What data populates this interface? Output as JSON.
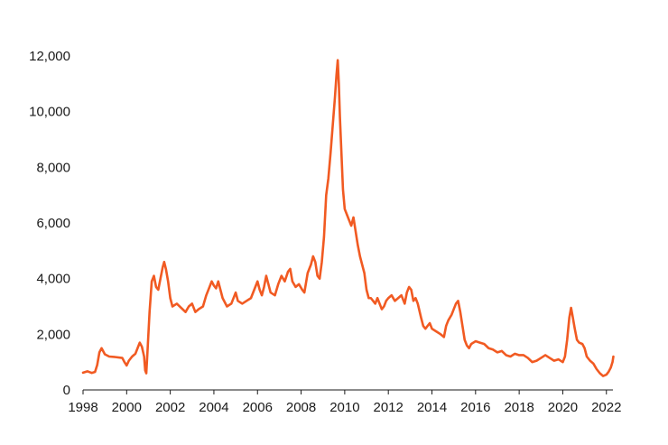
{
  "chart_data": {
    "type": "line",
    "title": "",
    "xlabel": "",
    "ylabel": "",
    "xlim": [
      1998.0,
      2022.3
    ],
    "ylim": [
      0,
      12000
    ],
    "x_ticks": [
      1998,
      2000,
      2002,
      2004,
      2006,
      2008,
      2010,
      2012,
      2014,
      2016,
      2018,
      2020,
      2022
    ],
    "x_tick_labels": [
      "1998",
      "2000",
      "2002",
      "2004",
      "2006",
      "2008",
      "2010",
      "2012",
      "2014",
      "2016",
      "2018",
      "2020",
      "2022"
    ],
    "y_ticks": [
      0,
      2000,
      4000,
      6000,
      8000,
      10000,
      12000
    ],
    "y_tick_labels": [
      "0",
      "2,000",
      "4,000",
      "6,000",
      "8,000",
      "10,000",
      "12,000"
    ],
    "grid": false,
    "legend": "none",
    "series": [
      {
        "color": "#f15a22",
        "points": [
          [
            1998.0,
            620
          ],
          [
            1998.2,
            670
          ],
          [
            1998.4,
            610
          ],
          [
            1998.55,
            650
          ],
          [
            1998.65,
            900
          ],
          [
            1998.75,
            1350
          ],
          [
            1998.85,
            1500
          ],
          [
            1999.0,
            1280
          ],
          [
            1999.2,
            1200
          ],
          [
            1999.5,
            1180
          ],
          [
            1999.8,
            1150
          ],
          [
            1999.9,
            1000
          ],
          [
            2000.0,
            880
          ],
          [
            2000.1,
            1050
          ],
          [
            2000.25,
            1200
          ],
          [
            2000.4,
            1300
          ],
          [
            2000.5,
            1500
          ],
          [
            2000.6,
            1700
          ],
          [
            2000.7,
            1550
          ],
          [
            2000.8,
            1200
          ],
          [
            2000.85,
            700
          ],
          [
            2000.9,
            600
          ],
          [
            2000.95,
            1300
          ],
          [
            2001.05,
            2800
          ],
          [
            2001.15,
            3900
          ],
          [
            2001.25,
            4100
          ],
          [
            2001.35,
            3700
          ],
          [
            2001.45,
            3600
          ],
          [
            2001.55,
            4000
          ],
          [
            2001.65,
            4400
          ],
          [
            2001.72,
            4600
          ],
          [
            2001.8,
            4350
          ],
          [
            2001.9,
            3900
          ],
          [
            2002.0,
            3300
          ],
          [
            2002.1,
            3000
          ],
          [
            2002.3,
            3100
          ],
          [
            2002.5,
            2950
          ],
          [
            2002.7,
            2800
          ],
          [
            2002.85,
            3000
          ],
          [
            2003.0,
            3100
          ],
          [
            2003.15,
            2800
          ],
          [
            2003.3,
            2900
          ],
          [
            2003.5,
            3000
          ],
          [
            2003.65,
            3400
          ],
          [
            2003.8,
            3700
          ],
          [
            2003.9,
            3900
          ],
          [
            2004.0,
            3750
          ],
          [
            2004.1,
            3650
          ],
          [
            2004.2,
            3900
          ],
          [
            2004.3,
            3600
          ],
          [
            2004.4,
            3300
          ],
          [
            2004.6,
            3000
          ],
          [
            2004.8,
            3100
          ],
          [
            2004.95,
            3400
          ],
          [
            2005.0,
            3500
          ],
          [
            2005.1,
            3200
          ],
          [
            2005.3,
            3100
          ],
          [
            2005.5,
            3200
          ],
          [
            2005.7,
            3300
          ],
          [
            2005.85,
            3600
          ],
          [
            2006.0,
            3900
          ],
          [
            2006.1,
            3600
          ],
          [
            2006.2,
            3400
          ],
          [
            2006.3,
            3700
          ],
          [
            2006.4,
            4100
          ],
          [
            2006.5,
            3800
          ],
          [
            2006.6,
            3500
          ],
          [
            2006.8,
            3400
          ],
          [
            2006.95,
            3800
          ],
          [
            2007.1,
            4100
          ],
          [
            2007.25,
            3900
          ],
          [
            2007.4,
            4250
          ],
          [
            2007.5,
            4350
          ],
          [
            2007.6,
            3900
          ],
          [
            2007.75,
            3700
          ],
          [
            2007.9,
            3800
          ],
          [
            2008.05,
            3600
          ],
          [
            2008.15,
            3500
          ],
          [
            2008.3,
            4200
          ],
          [
            2008.45,
            4500
          ],
          [
            2008.55,
            4800
          ],
          [
            2008.65,
            4600
          ],
          [
            2008.75,
            4100
          ],
          [
            2008.85,
            4000
          ],
          [
            2008.95,
            4600
          ],
          [
            2009.05,
            5500
          ],
          [
            2009.15,
            7000
          ],
          [
            2009.25,
            7600
          ],
          [
            2009.35,
            8500
          ],
          [
            2009.45,
            9500
          ],
          [
            2009.55,
            10500
          ],
          [
            2009.62,
            11300
          ],
          [
            2009.68,
            11850
          ],
          [
            2009.73,
            11000
          ],
          [
            2009.78,
            9800
          ],
          [
            2009.85,
            8500
          ],
          [
            2009.92,
            7200
          ],
          [
            2010.0,
            6500
          ],
          [
            2010.1,
            6300
          ],
          [
            2010.2,
            6100
          ],
          [
            2010.3,
            5900
          ],
          [
            2010.4,
            6200
          ],
          [
            2010.5,
            5700
          ],
          [
            2010.6,
            5200
          ],
          [
            2010.7,
            4800
          ],
          [
            2010.8,
            4500
          ],
          [
            2010.9,
            4200
          ],
          [
            2011.0,
            3600
          ],
          [
            2011.1,
            3300
          ],
          [
            2011.2,
            3300
          ],
          [
            2011.3,
            3200
          ],
          [
            2011.4,
            3100
          ],
          [
            2011.5,
            3300
          ],
          [
            2011.6,
            3100
          ],
          [
            2011.7,
            2900
          ],
          [
            2011.8,
            3000
          ],
          [
            2011.9,
            3200
          ],
          [
            2012.0,
            3300
          ],
          [
            2012.15,
            3400
          ],
          [
            2012.3,
            3200
          ],
          [
            2012.45,
            3300
          ],
          [
            2012.6,
            3400
          ],
          [
            2012.75,
            3100
          ],
          [
            2012.85,
            3500
          ],
          [
            2012.95,
            3700
          ],
          [
            2013.05,
            3600
          ],
          [
            2013.15,
            3200
          ],
          [
            2013.25,
            3300
          ],
          [
            2013.35,
            3100
          ],
          [
            2013.5,
            2600
          ],
          [
            2013.6,
            2300
          ],
          [
            2013.7,
            2200
          ],
          [
            2013.8,
            2300
          ],
          [
            2013.9,
            2400
          ],
          [
            2014.0,
            2200
          ],
          [
            2014.2,
            2100
          ],
          [
            2014.4,
            2000
          ],
          [
            2014.55,
            1900
          ],
          [
            2014.65,
            2300
          ],
          [
            2014.75,
            2500
          ],
          [
            2014.9,
            2700
          ],
          [
            2015.0,
            2900
          ],
          [
            2015.1,
            3100
          ],
          [
            2015.2,
            3200
          ],
          [
            2015.3,
            2800
          ],
          [
            2015.4,
            2300
          ],
          [
            2015.5,
            1800
          ],
          [
            2015.6,
            1600
          ],
          [
            2015.7,
            1500
          ],
          [
            2015.8,
            1650
          ],
          [
            2016.0,
            1750
          ],
          [
            2016.2,
            1700
          ],
          [
            2016.4,
            1650
          ],
          [
            2016.6,
            1500
          ],
          [
            2016.8,
            1450
          ],
          [
            2017.0,
            1350
          ],
          [
            2017.2,
            1400
          ],
          [
            2017.4,
            1250
          ],
          [
            2017.6,
            1200
          ],
          [
            2017.8,
            1300
          ],
          [
            2018.0,
            1250
          ],
          [
            2018.2,
            1250
          ],
          [
            2018.4,
            1150
          ],
          [
            2018.6,
            1000
          ],
          [
            2018.8,
            1050
          ],
          [
            2019.0,
            1150
          ],
          [
            2019.2,
            1250
          ],
          [
            2019.4,
            1150
          ],
          [
            2019.6,
            1050
          ],
          [
            2019.8,
            1100
          ],
          [
            2020.0,
            1000
          ],
          [
            2020.1,
            1200
          ],
          [
            2020.2,
            1800
          ],
          [
            2020.3,
            2600
          ],
          [
            2020.38,
            2950
          ],
          [
            2020.45,
            2650
          ],
          [
            2020.55,
            2200
          ],
          [
            2020.65,
            1800
          ],
          [
            2020.75,
            1700
          ],
          [
            2020.9,
            1650
          ],
          [
            2021.0,
            1500
          ],
          [
            2021.1,
            1200
          ],
          [
            2021.25,
            1050
          ],
          [
            2021.4,
            950
          ],
          [
            2021.55,
            750
          ],
          [
            2021.7,
            600
          ],
          [
            2021.85,
            500
          ],
          [
            2022.0,
            550
          ],
          [
            2022.1,
            650
          ],
          [
            2022.2,
            800
          ],
          [
            2022.28,
            1000
          ],
          [
            2022.32,
            1200
          ]
        ]
      }
    ]
  }
}
